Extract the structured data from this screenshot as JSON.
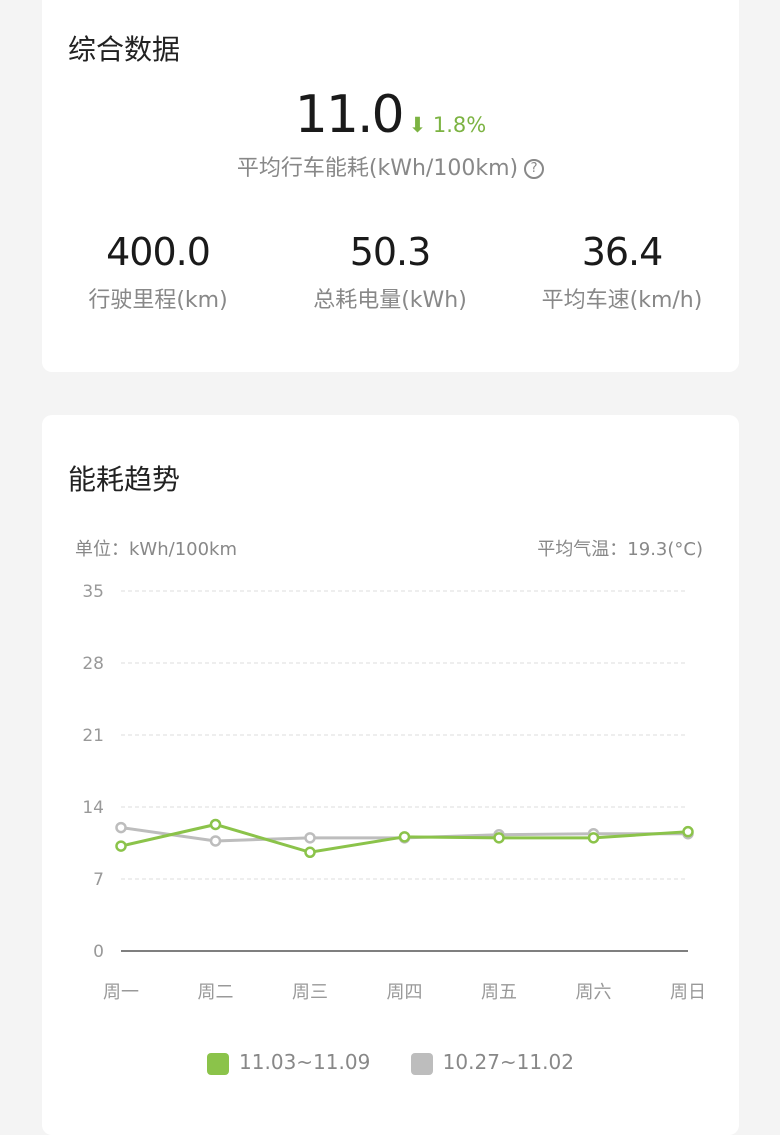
{
  "summary": {
    "title": "综合数据",
    "avg_consumption": "11.0",
    "change": "1.8%",
    "change_direction": "down",
    "avg_label": "平均行车能耗(kWh/100km)",
    "help_icon": "question-circle-icon",
    "stats": [
      {
        "value": "400.0",
        "label": "行驶里程(km)"
      },
      {
        "value": "50.3",
        "label": "总耗电量(kWh)"
      },
      {
        "value": "36.4",
        "label": "平均车速(km/h)"
      }
    ]
  },
  "trend": {
    "title": "能耗趋势",
    "unit": "单位：kWh/100km",
    "temperature": "平均气温：19.3(°C)"
  },
  "chart_data": {
    "type": "line",
    "categories": [
      "周一",
      "周二",
      "周三",
      "周四",
      "周五",
      "周六",
      "周日"
    ],
    "yticks": [
      0,
      7,
      14,
      21,
      28,
      35
    ],
    "ylim": [
      0,
      35
    ],
    "grid": true,
    "legend": "bottom",
    "series": [
      {
        "name": "11.03~11.09",
        "color": "#8bc34a",
        "values": [
          10.2,
          12.3,
          9.6,
          11.1,
          11.0,
          11.0,
          11.6
        ]
      },
      {
        "name": "10.27~11.02",
        "color": "#bdbdbd",
        "values": [
          12.0,
          10.7,
          11.0,
          11.0,
          11.3,
          11.4,
          11.4
        ]
      }
    ]
  }
}
